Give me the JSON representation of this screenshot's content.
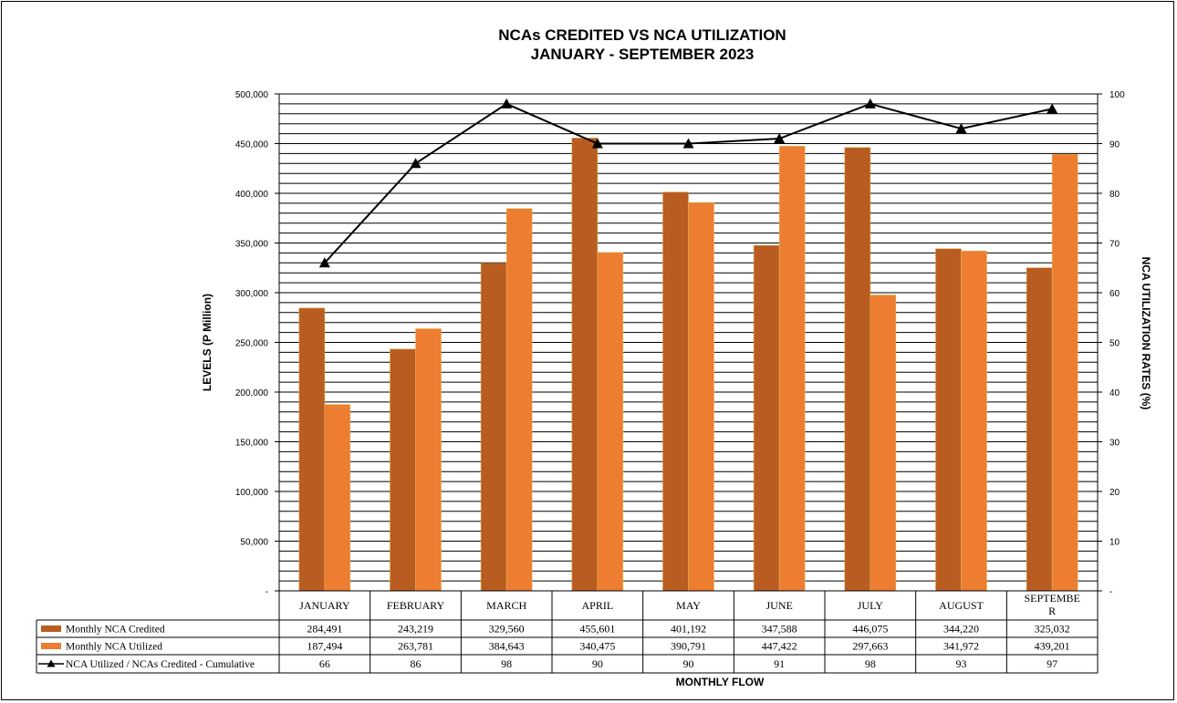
{
  "chart_data": {
    "type": "bar",
    "title": "NCAs CREDITED VS NCA UTILIZATION",
    "subtitle": "JANUARY  - SEPTEMBER 2023",
    "xlabel": "MONTHLY  FLOW",
    "ylabel": "LEVELS  (P Million)",
    "y2label": "NCA  UTILIZATION  RATES  (%)",
    "ylim": [
      0,
      500000
    ],
    "y2lim": [
      0,
      100
    ],
    "y_ticks": [
      "-",
      "50,000",
      "100,000",
      "150,000",
      "200,000",
      "250,000",
      "300,000",
      "350,000",
      "400,000",
      "450,000",
      "500,000"
    ],
    "y2_ticks": [
      "-",
      "10",
      "20",
      "30",
      "40",
      "50",
      "60",
      "70",
      "80",
      "90",
      "100"
    ],
    "grid": true,
    "categories": [
      "JANUARY",
      "FEBRUARY",
      "MARCH",
      "APRIL",
      "MAY",
      "JUNE",
      "JULY",
      "AUGUST",
      "SEPTEMBE\nR"
    ],
    "series": [
      {
        "name": "Monthly NCA Credited",
        "type": "bar",
        "color": "#B85C22",
        "values": [
          284491,
          243219,
          329560,
          455601,
          401192,
          347588,
          446075,
          344220,
          325032
        ],
        "labels": [
          "284,491",
          "243,219",
          "329,560",
          "455,601",
          "401,192",
          "347,588",
          "446,075",
          "344,220",
          "325,032"
        ]
      },
      {
        "name": "Monthly NCA Utilized",
        "type": "bar",
        "color": "#ED7D31",
        "values": [
          187494,
          263781,
          384643,
          340475,
          390791,
          447422,
          297663,
          341972,
          439201
        ],
        "labels": [
          "187,494",
          "263,781",
          "384,643",
          "340,475",
          "390,791",
          "447,422",
          "297,663",
          "341,972",
          "439,201"
        ]
      },
      {
        "name": "NCA Utilized / NCAs Credited - Cumulative",
        "type": "line",
        "axis": "secondary",
        "color": "#000000",
        "values": [
          66,
          86,
          98,
          90,
          90,
          91,
          98,
          93,
          97
        ],
        "labels": [
          "66",
          "86",
          "98",
          "90",
          "90",
          "91",
          "98",
          "93",
          "97"
        ]
      }
    ]
  }
}
